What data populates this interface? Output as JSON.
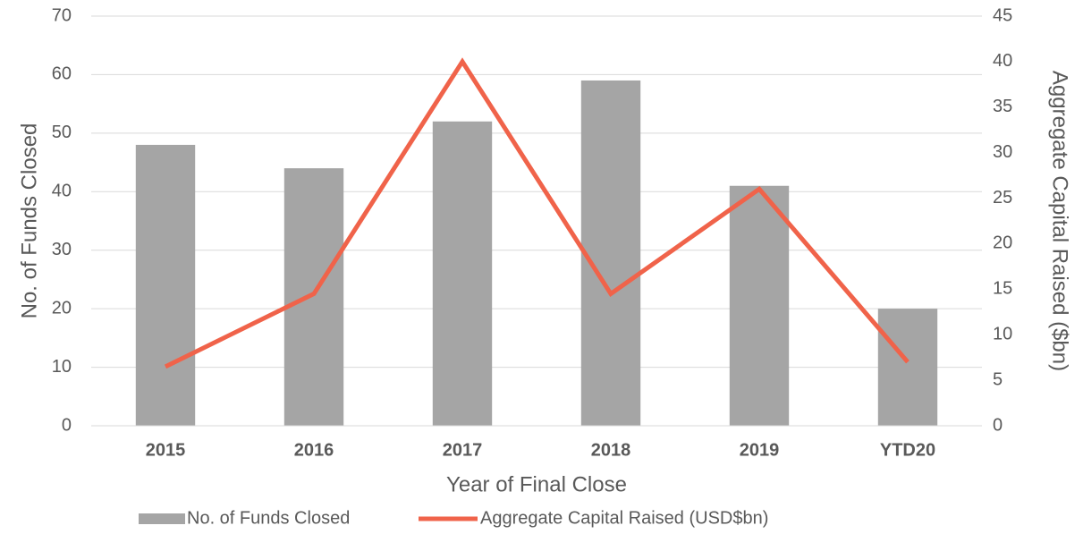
{
  "chart_data": {
    "type": "bar",
    "x_label": "Year of Final Close",
    "y_label": "No. of Funds Closed",
    "y2_label": "Aggregate Capital Raised ($bn)",
    "categories": [
      "2015",
      "2016",
      "2017",
      "2018",
      "2019",
      "YTD20"
    ],
    "series": [
      {
        "name": "No. of Funds Closed",
        "color": "#a5a5a5",
        "type": "bar",
        "values": [
          48,
          44,
          52,
          59,
          41,
          20
        ]
      },
      {
        "name": "Aggregate Capital Raised (USD$bn)",
        "color": "#f0634a",
        "type": "line",
        "axis": "y2",
        "values": [
          6.5,
          14.5,
          40,
          14.5,
          26,
          7
        ]
      }
    ],
    "ylim": [
      0,
      70
    ],
    "yticks": [
      0,
      10,
      20,
      30,
      40,
      50,
      60,
      70
    ],
    "y2lim": [
      0,
      45
    ],
    "y2ticks": [
      0,
      5,
      10,
      15,
      20,
      25,
      30,
      35,
      40,
      45
    ],
    "grid": true,
    "legend": "bottom"
  }
}
